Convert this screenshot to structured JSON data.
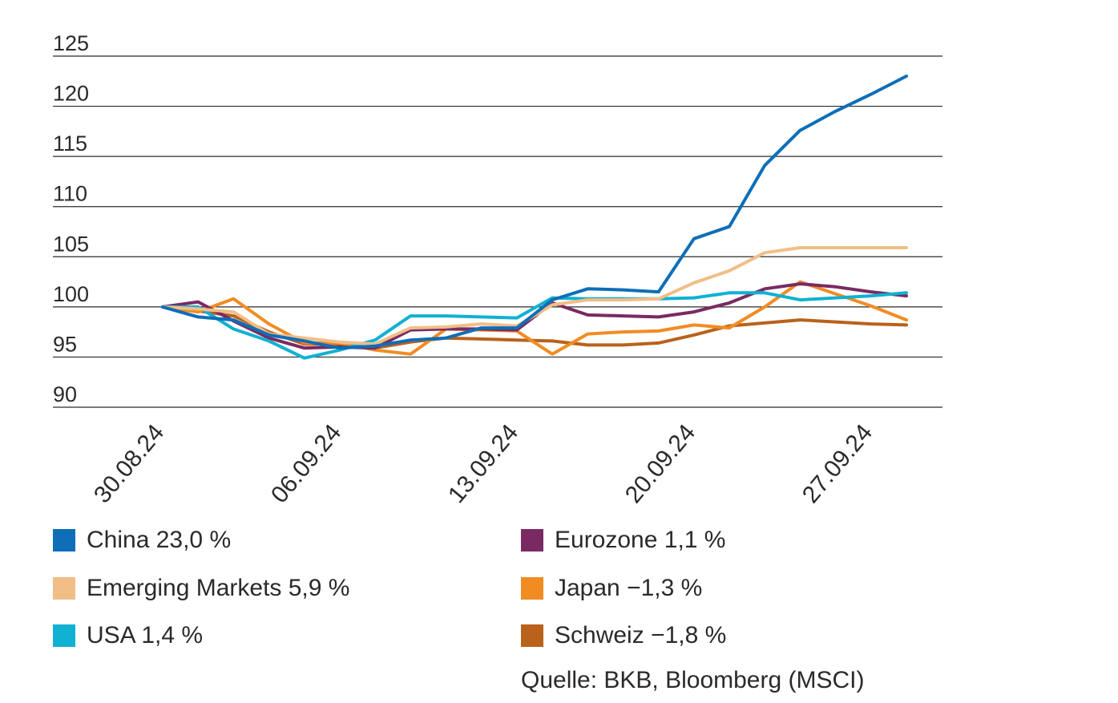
{
  "chart_data": {
    "type": "line",
    "x": [
      "30.08.24",
      "02.09.24",
      "03.09.24",
      "04.09.24",
      "05.09.24",
      "06.09.24",
      "09.09.24",
      "10.09.24",
      "11.09.24",
      "12.09.24",
      "13.09.24",
      "16.09.24",
      "17.09.24",
      "18.09.24",
      "19.09.24",
      "20.09.24",
      "23.09.24",
      "24.09.24",
      "25.09.24",
      "26.09.24",
      "27.09.24",
      "30.09.24"
    ],
    "x_ticks": [
      "30.08.24",
      "06.09.24",
      "13.09.24",
      "20.09.24",
      "27.09.24"
    ],
    "y_ticks": [
      125,
      120,
      115,
      110,
      105,
      100,
      95,
      90
    ],
    "ylim": [
      90,
      125
    ],
    "grid": true,
    "legend_position": "bottom",
    "series": [
      {
        "name": "China 23,0 %",
        "color": "#0e6eb8",
        "values": [
          100,
          99.0,
          98.7,
          97.2,
          96.6,
          95.9,
          96.1,
          96.7,
          96.9,
          97.9,
          97.9,
          100.7,
          101.8,
          101.7,
          101.5,
          106.8,
          108.0,
          114.1,
          117.6,
          119.5,
          121.2,
          123.0
        ]
      },
      {
        "name": "Emerging Markets 5,9 %",
        "color": "#f1be88",
        "values": [
          100,
          99.8,
          99.5,
          97.3,
          96.9,
          96.5,
          96.3,
          97.9,
          98.0,
          98.3,
          98.1,
          100.2,
          100.7,
          100.7,
          100.8,
          102.4,
          103.6,
          105.4,
          105.9,
          105.9,
          105.9,
          105.9
        ]
      },
      {
        "name": "USA 1,4 %",
        "color": "#10b1d2",
        "values": [
          100,
          100.0,
          97.8,
          96.6,
          94.9,
          95.7,
          96.7,
          99.1,
          99.1,
          99.0,
          98.9,
          100.9,
          100.8,
          100.8,
          100.8,
          100.9,
          101.4,
          101.4,
          100.7,
          100.9,
          101.1,
          101.4
        ]
      },
      {
        "name": "Eurozone 1,1 %",
        "color": "#7a2a63",
        "values": [
          100,
          100.5,
          98.6,
          96.9,
          95.9,
          96.0,
          95.9,
          97.7,
          97.8,
          97.8,
          97.7,
          100.4,
          99.2,
          99.1,
          99.0,
          99.5,
          100.4,
          101.8,
          102.3,
          102.0,
          101.5,
          101.1
        ]
      },
      {
        "name": "Japan −1,3 %",
        "color": "#f18c23",
        "values": [
          100,
          99.5,
          100.8,
          98.3,
          96.4,
          96.4,
          95.7,
          95.3,
          97.8,
          97.7,
          97.6,
          95.3,
          97.3,
          97.5,
          97.6,
          98.2,
          97.9,
          100.0,
          102.5,
          101.3,
          100.1,
          98.7
        ]
      },
      {
        "name": "Schweiz −1,8 %",
        "color": "#b9621b",
        "values": [
          100,
          99.6,
          99.1,
          97.5,
          96.3,
          96.3,
          95.9,
          96.5,
          96.9,
          96.8,
          96.7,
          96.6,
          96.2,
          96.2,
          96.4,
          97.2,
          98.1,
          98.4,
          98.7,
          98.5,
          98.3,
          98.2
        ]
      }
    ]
  },
  "source_text": "Quelle: BKB, Bloomberg (MSCI)"
}
